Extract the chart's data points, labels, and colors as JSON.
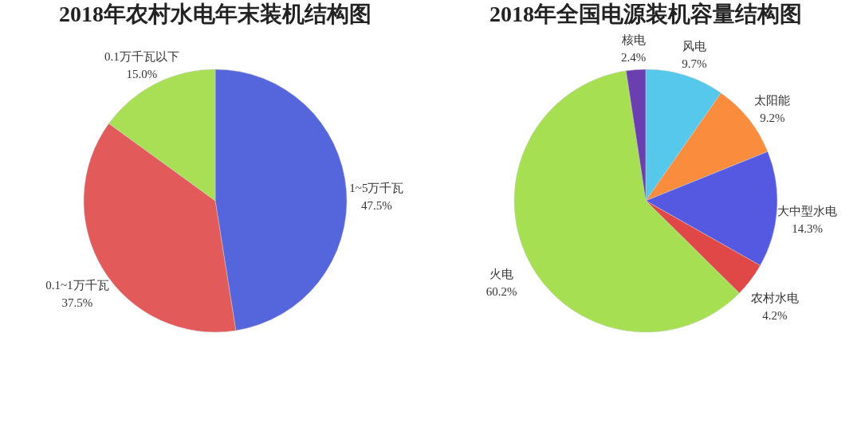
{
  "chart_data": [
    {
      "type": "pie",
      "title": "2018年农村水电年末装机结构图",
      "categories": [
        "1~5万千瓦",
        "0.1~1万千瓦",
        "0.1万千瓦以下"
      ],
      "values": [
        47.5,
        37.5,
        15.0
      ],
      "colors": [
        "#5566dd",
        "#e25a5a",
        "#a9df55"
      ],
      "value_labels": [
        "47.5%",
        "37.5%",
        "15.0%"
      ]
    },
    {
      "type": "pie",
      "title": "2018年全国电源装机容量结构图",
      "categories": [
        "风电",
        "太阳能",
        "大中型水电",
        "农村水电",
        "火电",
        "核电"
      ],
      "values": [
        9.7,
        9.2,
        14.3,
        4.2,
        60.2,
        2.4
      ],
      "colors": [
        "#55c8ec",
        "#fa8c3e",
        "#5558e0",
        "#e04848",
        "#a6e052",
        "#6a40b0"
      ],
      "value_labels": [
        "9.7%",
        "9.2%",
        "14.3%",
        "4.2%",
        "60.2%",
        "2.4%"
      ]
    }
  ]
}
